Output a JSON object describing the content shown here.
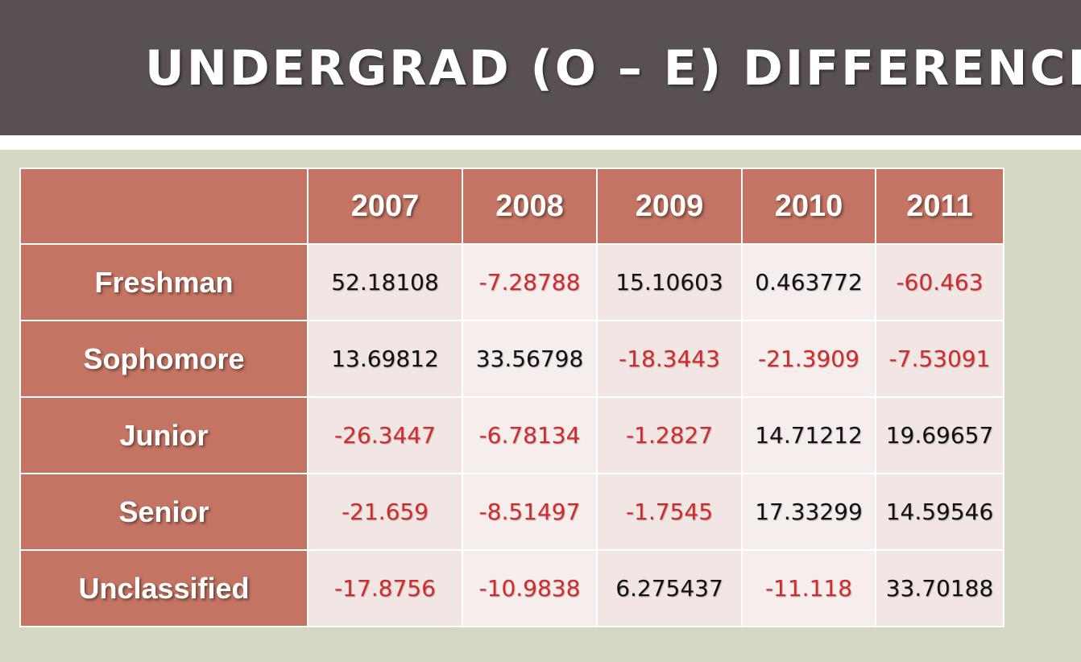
{
  "slide": {
    "title": "UNDERGRAD (O – E) DIFFERENCE"
  },
  "colors": {
    "title_bar": "#595054",
    "header_fill": "#c47462",
    "cell_fill": "#f1e6e4",
    "negative_text": "#d12b2b",
    "positive_text": "#111111",
    "background": "#d4d8c3"
  },
  "table": {
    "columns": [
      "",
      "2007",
      "2008",
      "2009",
      "2010",
      "2011"
    ],
    "rows": [
      {
        "label": "Freshman",
        "values": [
          "52.18108",
          "-7.28788",
          "15.10603",
          "0.463772",
          "-60.463"
        ]
      },
      {
        "label": "Sophomore",
        "values": [
          "13.69812",
          "33.56798",
          "-18.3443",
          "-21.3909",
          "-7.53091"
        ]
      },
      {
        "label": "Junior",
        "values": [
          "-26.3447",
          "-6.78134",
          "-1.2827",
          "14.71212",
          "19.69657"
        ]
      },
      {
        "label": "Senior",
        "values": [
          "-21.659",
          "-8.51497",
          "-1.7545",
          "17.33299",
          "14.59546"
        ]
      },
      {
        "label": "Unclassified",
        "values": [
          "-17.8756",
          "-10.9838",
          "6.275437",
          "-11.118",
          "33.70188"
        ]
      }
    ]
  }
}
